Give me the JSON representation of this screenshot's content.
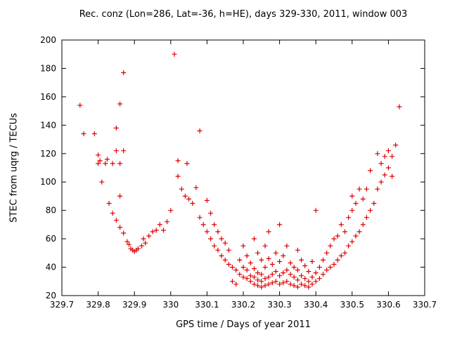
{
  "chart_data": {
    "type": "scatter",
    "title": "Rec. conz (Lon=286, Lat=-36, h=HE), days 329-330, 2011, window 003",
    "xlabel": "GPS time / Days of year 2011",
    "ylabel": "STEC from uqrg / TECUs",
    "xlim": [
      329.7,
      330.7
    ],
    "ylim": [
      20,
      200
    ],
    "xticks": [
      "329.7",
      "329.8",
      "329.9",
      "330",
      "330.1",
      "330.2",
      "330.3",
      "330.4",
      "330.5",
      "330.6",
      "330.7"
    ],
    "yticks": [
      "20",
      "40",
      "60",
      "80",
      "100",
      "120",
      "140",
      "160",
      "180",
      "200"
    ],
    "grid": false,
    "legend": false,
    "marker": "plus",
    "marker_color": "#dd0000",
    "points": [
      [
        329.75,
        154
      ],
      [
        329.76,
        134
      ],
      [
        329.79,
        134
      ],
      [
        329.8,
        119
      ],
      [
        329.8,
        113
      ],
      [
        329.805,
        115
      ],
      [
        329.81,
        100
      ],
      [
        329.82,
        113
      ],
      [
        329.825,
        116
      ],
      [
        329.83,
        85
      ],
      [
        329.84,
        113
      ],
      [
        329.85,
        138
      ],
      [
        329.85,
        122
      ],
      [
        329.86,
        155
      ],
      [
        329.86,
        113
      ],
      [
        329.87,
        177
      ],
      [
        329.87,
        122
      ],
      [
        329.84,
        78
      ],
      [
        329.85,
        73
      ],
      [
        329.86,
        90
      ],
      [
        329.86,
        68
      ],
      [
        329.87,
        64
      ],
      [
        329.88,
        58
      ],
      [
        329.885,
        56
      ],
      [
        329.89,
        53
      ],
      [
        329.895,
        52
      ],
      [
        329.9,
        51
      ],
      [
        329.905,
        52
      ],
      [
        329.91,
        53
      ],
      [
        329.92,
        55
      ],
      [
        329.925,
        60
      ],
      [
        329.93,
        57
      ],
      [
        329.94,
        62
      ],
      [
        329.95,
        65
      ],
      [
        329.96,
        66
      ],
      [
        329.97,
        70
      ],
      [
        329.98,
        66
      ],
      [
        329.99,
        72
      ],
      [
        330.0,
        80
      ],
      [
        330.01,
        190
      ],
      [
        330.02,
        115
      ],
      [
        330.02,
        104
      ],
      [
        330.03,
        95
      ],
      [
        330.04,
        90
      ],
      [
        330.045,
        113
      ],
      [
        330.05,
        88
      ],
      [
        330.06,
        85
      ],
      [
        330.07,
        96
      ],
      [
        330.08,
        136
      ],
      [
        330.08,
        75
      ],
      [
        330.09,
        70
      ],
      [
        330.1,
        87
      ],
      [
        330.1,
        65
      ],
      [
        330.11,
        60
      ],
      [
        330.11,
        78
      ],
      [
        330.12,
        55
      ],
      [
        330.12,
        70
      ],
      [
        330.13,
        52
      ],
      [
        330.13,
        65
      ],
      [
        330.14,
        48
      ],
      [
        330.14,
        60
      ],
      [
        330.15,
        45
      ],
      [
        330.15,
        57
      ],
      [
        330.16,
        42
      ],
      [
        330.16,
        52
      ],
      [
        330.17,
        40
      ],
      [
        330.17,
        30
      ],
      [
        330.18,
        38
      ],
      [
        330.18,
        28
      ],
      [
        330.19,
        35
      ],
      [
        330.19,
        45
      ],
      [
        330.2,
        33
      ],
      [
        330.2,
        40
      ],
      [
        330.2,
        55
      ],
      [
        330.21,
        32
      ],
      [
        330.21,
        38
      ],
      [
        330.21,
        48
      ],
      [
        330.22,
        30
      ],
      [
        330.22,
        34
      ],
      [
        330.22,
        43
      ],
      [
        330.23,
        28
      ],
      [
        330.23,
        33
      ],
      [
        330.23,
        39
      ],
      [
        330.23,
        60
      ],
      [
        330.24,
        27
      ],
      [
        330.24,
        31
      ],
      [
        330.24,
        36
      ],
      [
        330.24,
        50
      ],
      [
        330.25,
        26
      ],
      [
        330.25,
        30
      ],
      [
        330.25,
        35
      ],
      [
        330.25,
        45
      ],
      [
        330.26,
        27
      ],
      [
        330.26,
        32
      ],
      [
        330.26,
        40
      ],
      [
        330.26,
        55
      ],
      [
        330.27,
        28
      ],
      [
        330.27,
        33
      ],
      [
        330.27,
        46
      ],
      [
        330.27,
        65
      ],
      [
        330.28,
        29
      ],
      [
        330.28,
        35
      ],
      [
        330.28,
        42
      ],
      [
        330.29,
        30
      ],
      [
        330.29,
        37
      ],
      [
        330.29,
        50
      ],
      [
        330.3,
        28
      ],
      [
        330.3,
        34
      ],
      [
        330.3,
        44
      ],
      [
        330.3,
        70
      ],
      [
        330.31,
        29
      ],
      [
        330.31,
        36
      ],
      [
        330.31,
        48
      ],
      [
        330.32,
        30
      ],
      [
        330.32,
        38
      ],
      [
        330.32,
        55
      ],
      [
        330.33,
        28
      ],
      [
        330.33,
        35
      ],
      [
        330.33,
        43
      ],
      [
        330.34,
        27
      ],
      [
        330.34,
        33
      ],
      [
        330.34,
        40
      ],
      [
        330.35,
        26
      ],
      [
        330.35,
        31
      ],
      [
        330.35,
        38
      ],
      [
        330.35,
        52
      ],
      [
        330.36,
        28
      ],
      [
        330.36,
        34
      ],
      [
        330.36,
        45
      ],
      [
        330.37,
        27
      ],
      [
        330.37,
        32
      ],
      [
        330.37,
        41
      ],
      [
        330.38,
        26
      ],
      [
        330.38,
        30
      ],
      [
        330.38,
        37
      ],
      [
        330.39,
        28
      ],
      [
        330.39,
        33
      ],
      [
        330.39,
        44
      ],
      [
        330.4,
        30
      ],
      [
        330.4,
        36
      ],
      [
        330.4,
        80
      ],
      [
        330.41,
        32
      ],
      [
        330.41,
        40
      ],
      [
        330.42,
        35
      ],
      [
        330.42,
        45
      ],
      [
        330.43,
        38
      ],
      [
        330.43,
        50
      ],
      [
        330.44,
        40
      ],
      [
        330.44,
        55
      ],
      [
        330.45,
        42
      ],
      [
        330.45,
        60
      ],
      [
        330.46,
        45
      ],
      [
        330.46,
        62
      ],
      [
        330.47,
        48
      ],
      [
        330.47,
        70
      ],
      [
        330.48,
        50
      ],
      [
        330.48,
        65
      ],
      [
        330.49,
        55
      ],
      [
        330.49,
        75
      ],
      [
        330.5,
        58
      ],
      [
        330.5,
        80
      ],
      [
        330.5,
        90
      ],
      [
        330.51,
        62
      ],
      [
        330.51,
        85
      ],
      [
        330.52,
        65
      ],
      [
        330.52,
        95
      ],
      [
        330.53,
        70
      ],
      [
        330.53,
        88
      ],
      [
        330.54,
        75
      ],
      [
        330.54,
        95
      ],
      [
        330.55,
        80
      ],
      [
        330.55,
        108
      ],
      [
        330.56,
        85
      ],
      [
        330.57,
        95
      ],
      [
        330.57,
        120
      ],
      [
        330.58,
        100
      ],
      [
        330.58,
        113
      ],
      [
        330.59,
        105
      ],
      [
        330.59,
        118
      ],
      [
        330.6,
        110
      ],
      [
        330.6,
        122
      ],
      [
        330.61,
        104
      ],
      [
        330.61,
        118
      ],
      [
        330.62,
        126
      ],
      [
        330.63,
        153
      ]
    ]
  }
}
